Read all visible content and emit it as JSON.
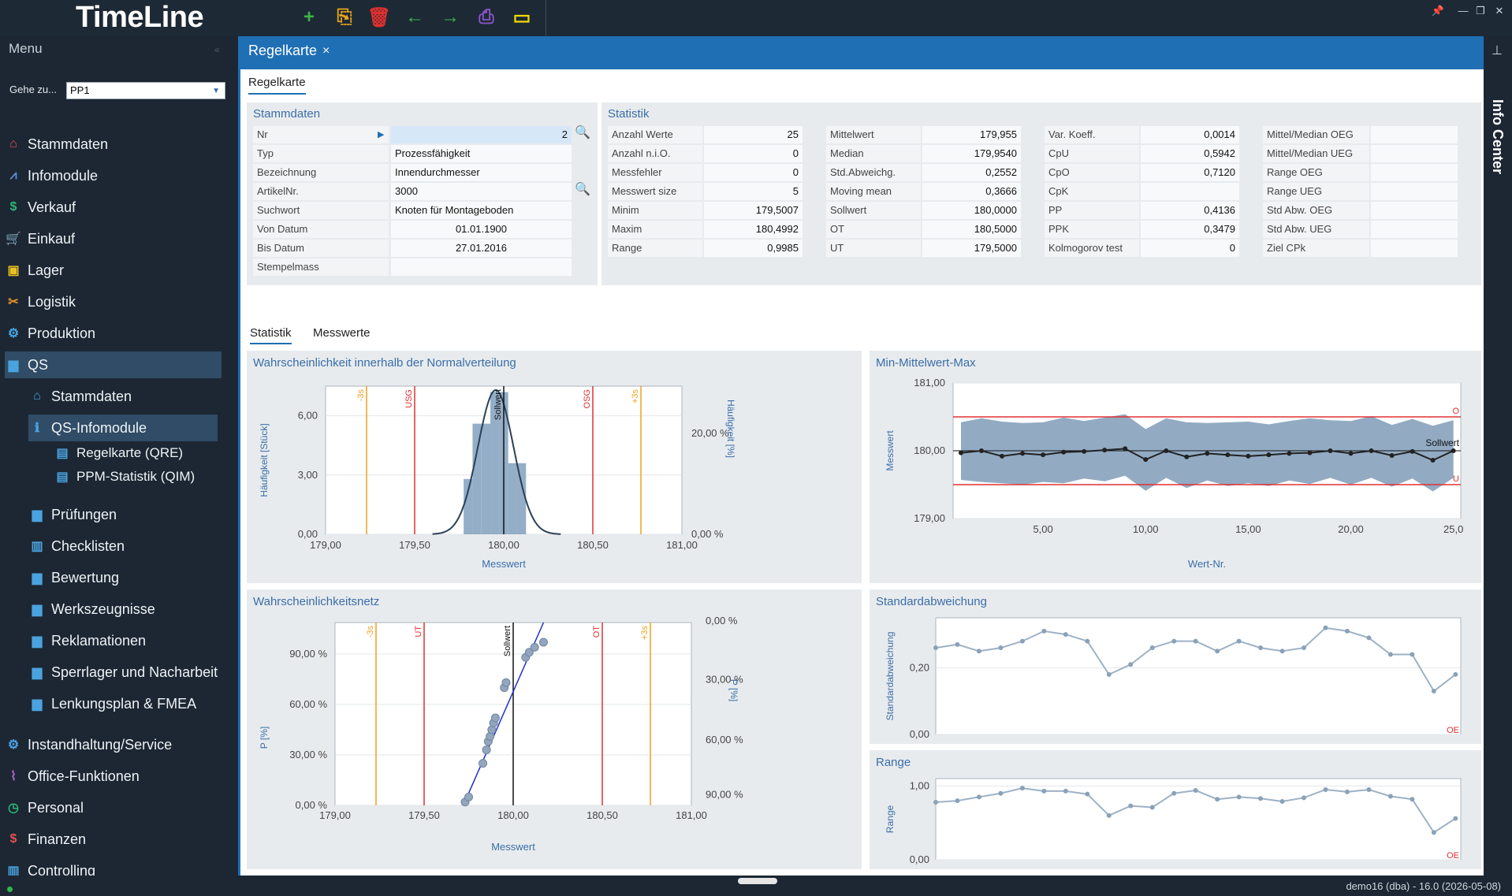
{
  "app": {
    "title": "TimeLine"
  },
  "toolbar": {
    "icons": [
      {
        "name": "add-icon",
        "glyph": "+",
        "color": "#3fb24a"
      },
      {
        "name": "copy-icon",
        "glyph": "⎘",
        "color": "#e8a317"
      },
      {
        "name": "delete-icon",
        "glyph": "🗑",
        "color": "#e03030"
      },
      {
        "name": "back-icon",
        "glyph": "←",
        "color": "#3fb24a"
      },
      {
        "name": "forward-icon",
        "glyph": "→",
        "color": "#3fb24a"
      },
      {
        "name": "print-icon",
        "glyph": "⎙",
        "color": "#8a55c7"
      },
      {
        "name": "battery-icon",
        "glyph": "▭",
        "color": "#f0d800"
      }
    ]
  },
  "sidebar": {
    "title": "Menu",
    "goto_label": "Gehe zu...",
    "goto_value": "PP1",
    "items": [
      {
        "label": "Stammdaten",
        "icon": "house-icon",
        "glyph": "⌂",
        "color": "#e55050"
      },
      {
        "label": "Infomodule",
        "icon": "chart-icon",
        "glyph": "⩘",
        "color": "#5a8fd8"
      },
      {
        "label": "Verkauf",
        "icon": "money-icon",
        "glyph": "$",
        "color": "#2bb673"
      },
      {
        "label": "Einkauf",
        "icon": "cart-icon",
        "glyph": "🛒",
        "color": "#b05fd0"
      },
      {
        "label": "Lager",
        "icon": "box-icon",
        "glyph": "▣",
        "color": "#e8c020"
      },
      {
        "label": "Logistik",
        "icon": "tools-icon",
        "glyph": "✂",
        "color": "#e8902a"
      },
      {
        "label": "Produktion",
        "icon": "gears-icon",
        "glyph": "⚙",
        "color": "#4aa3df"
      },
      {
        "label": "QS",
        "icon": "folder-icon",
        "glyph": "▆",
        "color": "#4aa3df"
      }
    ],
    "qs_items": [
      {
        "label": "Stammdaten",
        "icon": "house-gear-icon",
        "glyph": "⌂",
        "color": "#4aa3df"
      },
      {
        "label": "QS-Infomodule",
        "icon": "info-icon",
        "glyph": "ℹ",
        "color": "#4aa3df"
      }
    ],
    "qs_info_items": [
      {
        "label": "Regelkarte (QRE)",
        "icon": "document-icon",
        "glyph": "▤",
        "color": "#4aa3df"
      },
      {
        "label": "PPM-Statistik (QIM)",
        "icon": "document-icon",
        "glyph": "▤",
        "color": "#4aa3df"
      }
    ],
    "qs_more": [
      {
        "label": "Prüfungen",
        "icon": "folder-icon"
      },
      {
        "label": "Checklisten",
        "icon": "book-icon"
      },
      {
        "label": "Bewertung",
        "icon": "folder-icon"
      },
      {
        "label": "Werkszeugnisse",
        "icon": "folder-icon"
      },
      {
        "label": "Reklamationen",
        "icon": "folder-icon"
      },
      {
        "label": "Sperrlager und Nacharbeit",
        "icon": "folder-icon"
      },
      {
        "label": "Lenkungsplan & FMEA",
        "icon": "folder-icon"
      }
    ],
    "more_items": [
      {
        "label": "Instandhaltung/Service",
        "icon": "gear-icon",
        "glyph": "⚙",
        "color": "#4aa3df"
      },
      {
        "label": "Office-Funktionen",
        "icon": "paperclip-icon",
        "glyph": "⌇",
        "color": "#b05fd0"
      },
      {
        "label": "Personal",
        "icon": "clock-icon",
        "glyph": "◷",
        "color": "#2bb673"
      },
      {
        "label": "Finanzen",
        "icon": "currency-icon",
        "glyph": "$",
        "color": "#e55050"
      },
      {
        "label": "Controlling",
        "icon": "bars-icon",
        "glyph": "▥",
        "color": "#4aa3df"
      }
    ]
  },
  "doc_tab": {
    "label": "Regelkarte",
    "close": "×"
  },
  "inner_tab": "Regelkarte",
  "info_center": "Info Center",
  "stammdaten": {
    "title": "Stammdaten",
    "rows": [
      {
        "label": "Nr",
        "value": "2"
      },
      {
        "label": "Typ",
        "value": "Prozessfähigkeit"
      },
      {
        "label": "Bezeichnung",
        "value": "Innendurchmesser"
      },
      {
        "label": "ArtikelNr.",
        "value": "3000"
      },
      {
        "label": "Suchwort",
        "value": "Knoten für Montageboden"
      },
      {
        "label": "Von Datum",
        "value": "01.01.1900"
      },
      {
        "label": "Bis Datum",
        "value": "27.01.2016"
      },
      {
        "label": "Stempelmass",
        "value": ""
      }
    ]
  },
  "statistik": {
    "title": "Statistik",
    "col1": [
      [
        "Anzahl Werte",
        "25"
      ],
      [
        "Anzahl n.i.O.",
        "0"
      ],
      [
        "Messfehler",
        "0"
      ],
      [
        "Messwert size",
        "5"
      ],
      [
        "Minim",
        "179,5007"
      ],
      [
        "Maxim",
        "180,4992"
      ],
      [
        "Range",
        "0,9985"
      ]
    ],
    "col2": [
      [
        "Mittelwert",
        "179,955"
      ],
      [
        "Median",
        "179,9540"
      ],
      [
        "Std.Abweichg.",
        "0,2552"
      ],
      [
        "Moving mean",
        "0,3666"
      ],
      [
        "Sollwert",
        "180,0000"
      ],
      [
        "OT",
        "180,5000"
      ],
      [
        "UT",
        "179,5000"
      ]
    ],
    "col3": [
      [
        "Var. Koeff.",
        "0,0014"
      ],
      [
        "CpU",
        "0,5942"
      ],
      [
        "CpO",
        "0,7120"
      ],
      [
        "CpK",
        ""
      ],
      [
        "PP",
        "0,4136"
      ],
      [
        "PPK",
        "0,3479"
      ],
      [
        "Kolmogorov test",
        "0"
      ]
    ],
    "col4": [
      [
        "Mittel/Median OEG",
        ""
      ],
      [
        "Mittel/Median UEG",
        ""
      ],
      [
        "Range OEG",
        ""
      ],
      [
        "Range UEG",
        ""
      ],
      [
        "Std Abw. OEG",
        ""
      ],
      [
        "Std Abw. UEG",
        ""
      ],
      [
        "Ziel CPk",
        ""
      ]
    ]
  },
  "subtabs": [
    "Statistik",
    "Messwerte"
  ],
  "colors": {
    "accent": "#1f6fb5",
    "bar": "#93aec6",
    "line_red": "#e03030",
    "line_orange": "#f0a020"
  },
  "charts": {
    "hist": {
      "title": "Wahrscheinlichkeit innerhalb der Normalverteilung",
      "xlabel": "Messwert",
      "ylabel": "Häufigkeit [Stück]",
      "y2label": "Häufigkeit [%]",
      "xticks": [
        "179,00",
        "179,50",
        "180,00",
        "180,50",
        "181,00"
      ],
      "yticks": [
        "0,00",
        "3,00",
        "6,00"
      ],
      "y2ticks": [
        "0,00 %",
        "20,00 %"
      ],
      "vlabels": [
        "-3s",
        "USG",
        "Sollwert",
        "OSG",
        "+3s"
      ]
    },
    "minmax": {
      "title": "Min-Mittelwert-Max",
      "xlabel": "Wert-Nr.",
      "ylabel": "Messwert",
      "yticks": [
        "179,00",
        "180,00",
        "181,00"
      ],
      "xticks": [
        "5,00",
        "10,00",
        "15,00",
        "20,00",
        "25,0"
      ],
      "sollwert": "Sollwert",
      "upper": "O",
      "lower": "U"
    },
    "prob": {
      "title": "Wahrscheinlichkeitsnetz",
      "xlabel": "Messwert",
      "ylabel": "P [%]",
      "y2label": "P [%]",
      "xticks": [
        "179,00",
        "179,50",
        "180,00",
        "180,50",
        "181,00"
      ],
      "yticks": [
        "0,00 %",
        "30,00 %",
        "60,00 %",
        "90,00 %"
      ],
      "y2ticks": [
        "0,00 %",
        "30,00 %",
        "60,00 %",
        "90,00 %"
      ],
      "vlabels": [
        "-3s",
        "UT",
        "Sollwert",
        "OT",
        "+3s"
      ]
    },
    "std": {
      "title": "Standardabweichung",
      "ylabel": "Standardabweichung",
      "yticks": [
        "0,00",
        "0,20"
      ],
      "corner": "OE"
    },
    "range": {
      "title": "Range",
      "ylabel": "Range",
      "yticks": [
        "0,00",
        "1,00"
      ],
      "corner": "OE"
    }
  },
  "chart_data": [
    {
      "type": "bar",
      "title": "Wahrscheinlichkeit innerhalb der Normalverteilung",
      "xlabel": "Messwert",
      "ylabel": "Häufigkeit [Stück]",
      "x_bins": [
        179.8,
        179.85,
        179.9,
        179.95,
        180.0,
        180.05,
        180.1
      ],
      "values": [
        2.8,
        5.6,
        5.6,
        7.2,
        7.2,
        3.6,
        3.6
      ],
      "ylim": [
        0,
        7.5
      ],
      "xlim": [
        179,
        181
      ],
      "reference_lines": {
        "-3s": 179.23,
        "USG": 179.5,
        "Sollwert": 180,
        "OSG": 180.5,
        "+3s": 180.77
      }
    },
    {
      "type": "line",
      "title": "Min-Mittelwert-Max",
      "xlabel": "Wert-Nr.",
      "ylabel": "Messwert",
      "ylim": [
        179,
        181
      ],
      "x": [
        1,
        2,
        3,
        4,
        5,
        6,
        7,
        8,
        9,
        10,
        11,
        12,
        13,
        14,
        15,
        16,
        17,
        18,
        19,
        20,
        21,
        22,
        23,
        24,
        25
      ],
      "series": [
        {
          "values": [
            179.97,
            180.0,
            179.92,
            179.96,
            179.94,
            179.98,
            179.99,
            180.01,
            180.03,
            179.87,
            180.0,
            179.91,
            179.96,
            179.94,
            179.92,
            179.94,
            179.96,
            179.97,
            180.0,
            179.96,
            180.0,
            179.93,
            179.99,
            179.86,
            180.0
          ]
        }
      ],
      "upper_limit": 180.5,
      "lower_limit": 179.5,
      "sollwert": 180
    },
    {
      "type": "scatter",
      "title": "Wahrscheinlichkeitsnetz",
      "xlabel": "Messwert",
      "ylabel": "P [%]",
      "xlim": [
        179,
        181
      ],
      "ylim": [
        0,
        100
      ],
      "points": [
        [
          179.73,
          2
        ],
        [
          179.75,
          5
        ],
        [
          179.83,
          25
        ],
        [
          179.85,
          33
        ],
        [
          179.86,
          38
        ],
        [
          179.87,
          41
        ],
        [
          179.88,
          45
        ],
        [
          179.89,
          49
        ],
        [
          179.9,
          52
        ],
        [
          179.95,
          70
        ],
        [
          179.96,
          73
        ],
        [
          180.07,
          88
        ],
        [
          180.09,
          91
        ],
        [
          180.12,
          94
        ],
        [
          180.17,
          97
        ]
      ]
    },
    {
      "type": "line",
      "title": "Standardabweichung",
      "ylabel": "Standardabweichung",
      "ylim": [
        0,
        0.35
      ],
      "x": [
        1,
        2,
        3,
        4,
        5,
        6,
        7,
        8,
        9,
        10,
        11,
        12,
        13,
        14,
        15,
        16,
        17,
        18,
        19,
        20,
        21,
        22,
        23,
        24,
        25
      ],
      "values": [
        0.26,
        0.27,
        0.25,
        0.26,
        0.28,
        0.31,
        0.3,
        0.28,
        0.18,
        0.21,
        0.26,
        0.28,
        0.28,
        0.25,
        0.28,
        0.26,
        0.25,
        0.26,
        0.32,
        0.31,
        0.29,
        0.24,
        0.24,
        0.13,
        0.18
      ]
    },
    {
      "type": "line",
      "title": "Range",
      "ylabel": "Range",
      "ylim": [
        0,
        1.1
      ],
      "x": [
        1,
        2,
        3,
        4,
        5,
        6,
        7,
        8,
        9,
        10,
        11,
        12,
        13,
        14,
        15,
        16,
        17,
        18,
        19,
        20,
        21,
        22,
        23,
        24,
        25
      ],
      "values": [
        0.78,
        0.8,
        0.85,
        0.9,
        0.97,
        0.93,
        0.93,
        0.89,
        0.6,
        0.73,
        0.71,
        0.9,
        0.94,
        0.82,
        0.85,
        0.83,
        0.79,
        0.84,
        0.95,
        0.92,
        0.95,
        0.86,
        0.82,
        0.37,
        0.56
      ]
    }
  ],
  "status": {
    "text": "demo16 (dba) - 16.0 (2026-05-08)"
  }
}
